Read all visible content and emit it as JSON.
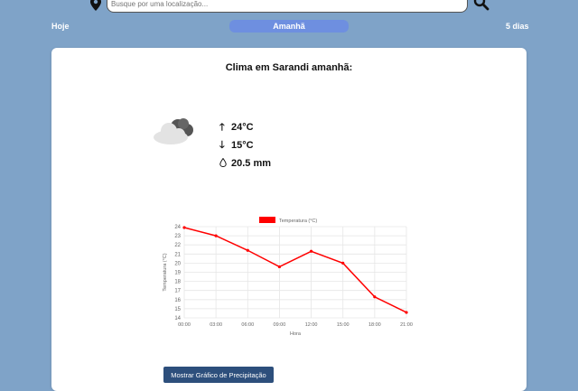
{
  "search": {
    "placeholder": "Busque por uma localização..."
  },
  "tabs": [
    {
      "label": "Hoje"
    },
    {
      "label": "Amanhã"
    },
    {
      "label": "5 dias"
    }
  ],
  "card": {
    "title": "Clima em Sarandi amanhã:",
    "max_temp": "24°C",
    "min_temp": "15°C",
    "precipitation": "20.5 mm"
  },
  "buttons": {
    "precipitation_chart": "Mostrar Gráfico de Precipitação"
  },
  "colors": {
    "background": "#7fa3c8",
    "active_tab": "#6e8fe0",
    "series": "#ff0000",
    "button": "#2d4f7c"
  },
  "chart_data": {
    "type": "line",
    "x": [
      "00:00",
      "03:00",
      "06:00",
      "09:00",
      "12:00",
      "15:00",
      "18:00",
      "21:00"
    ],
    "series": [
      {
        "name": "Temperatura (°C)",
        "values": [
          23.9,
          23.0,
          21.4,
          19.6,
          21.3,
          20.0,
          16.3,
          14.6
        ]
      }
    ],
    "xlabel": "Hora",
    "ylabel": "Temperatura (°C)",
    "yticks": [
      14,
      15,
      16,
      17,
      18,
      19,
      20,
      21,
      22,
      23,
      24
    ],
    "ylim": [
      14,
      24
    ],
    "grid": true,
    "legend": "top"
  }
}
